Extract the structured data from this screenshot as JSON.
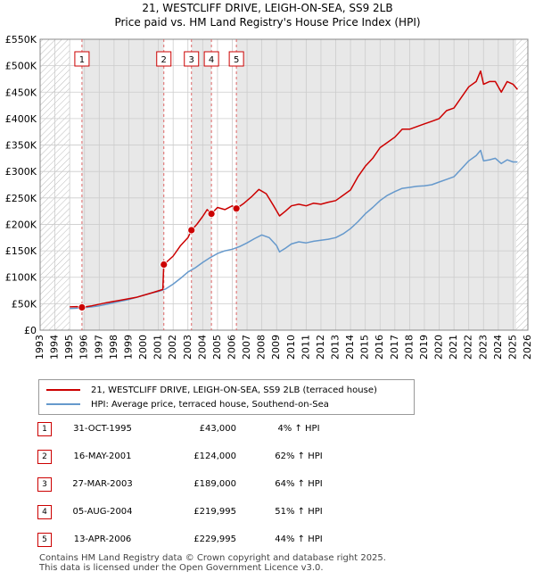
{
  "title_line1": "21, WESTCLIFF DRIVE, LEIGH-ON-SEA, SS9 2LB",
  "title_line2": "Price paid vs. HM Land Registry's House Price Index (HPI)",
  "colors": {
    "property": "#cc0000",
    "hpi": "#6699cc",
    "shade": "#e8e8e8",
    "grid": "#cccccc"
  },
  "chart_data": {
    "type": "line",
    "xlim": [
      1993,
      2026
    ],
    "ylim": [
      0,
      550000
    ],
    "y_ticks": [
      0,
      50000,
      100000,
      150000,
      200000,
      250000,
      300000,
      350000,
      400000,
      450000,
      500000,
      550000
    ],
    "y_tick_labels": [
      "£0",
      "£50K",
      "£100K",
      "£150K",
      "£200K",
      "£250K",
      "£300K",
      "£350K",
      "£400K",
      "£450K",
      "£500K",
      "£550K"
    ],
    "x_ticks": [
      1993,
      1994,
      1995,
      1996,
      1997,
      1998,
      1999,
      2000,
      2001,
      2002,
      2003,
      2004,
      2005,
      2006,
      2007,
      2008,
      2009,
      2010,
      2011,
      2012,
      2013,
      2014,
      2015,
      2016,
      2017,
      2018,
      2019,
      2020,
      2021,
      2022,
      2023,
      2024,
      2025,
      2026
    ],
    "hatched_ranges": [
      [
        1993,
        1995.0
      ],
      [
        2025.2,
        2026
      ]
    ],
    "series": [
      {
        "name": "21, WESTCLIFF DRIVE, LEIGH-ON-SEA, SS9 2LB (terraced house)",
        "color": "#cc0000",
        "x": [
          1995.0,
          1995.5,
          1995.83,
          1996.5,
          1997.5,
          1998.5,
          1999.5,
          2000.5,
          2001.3,
          2001.37,
          2002.0,
          2002.5,
          2003.0,
          2003.24,
          2003.6,
          2004.0,
          2004.3,
          2004.59,
          2005.0,
          2005.5,
          2006.0,
          2006.28,
          2006.8,
          2007.3,
          2007.8,
          2008.3,
          2008.8,
          2009.2,
          2009.6,
          2010.0,
          2010.5,
          2011.0,
          2011.5,
          2012.0,
          2012.5,
          2013.0,
          2013.5,
          2014.0,
          2014.5,
          2015.0,
          2015.5,
          2016.0,
          2016.5,
          2017.0,
          2017.5,
          2018.0,
          2018.5,
          2019.0,
          2019.5,
          2020.0,
          2020.5,
          2021.0,
          2021.5,
          2022.0,
          2022.5,
          2022.8,
          2023.0,
          2023.4,
          2023.8,
          2024.2,
          2024.6,
          2025.0,
          2025.3
        ],
        "y": [
          44000,
          44500,
          43000,
          46000,
          52000,
          57000,
          62000,
          70000,
          77000,
          124000,
          140000,
          160000,
          175000,
          189000,
          200000,
          215000,
          228000,
          219995,
          232000,
          228000,
          235000,
          229995,
          240000,
          252000,
          266000,
          258000,
          235000,
          216000,
          225000,
          235000,
          238000,
          235000,
          240000,
          238000,
          242000,
          245000,
          255000,
          265000,
          290000,
          310000,
          325000,
          345000,
          355000,
          365000,
          380000,
          380000,
          385000,
          390000,
          395000,
          400000,
          415000,
          420000,
          440000,
          460000,
          470000,
          490000,
          465000,
          470000,
          470000,
          450000,
          470000,
          465000,
          455000
        ]
      },
      {
        "name": "HPI: Average price, terraced house, Southend-on-Sea",
        "color": "#6699cc",
        "x": [
          1995.0,
          1995.5,
          1996.0,
          1996.5,
          1997.0,
          1997.5,
          1998.0,
          1998.5,
          1999.0,
          1999.5,
          2000.0,
          2000.5,
          2001.0,
          2001.5,
          2002.0,
          2002.5,
          2003.0,
          2003.5,
          2004.0,
          2004.5,
          2005.0,
          2005.5,
          2006.0,
          2006.5,
          2007.0,
          2007.5,
          2008.0,
          2008.5,
          2009.0,
          2009.2,
          2009.6,
          2010.0,
          2010.5,
          2011.0,
          2011.5,
          2012.0,
          2012.5,
          2013.0,
          2013.5,
          2014.0,
          2014.5,
          2015.0,
          2015.5,
          2016.0,
          2016.5,
          2017.0,
          2017.5,
          2018.0,
          2018.5,
          2019.0,
          2019.5,
          2020.0,
          2020.5,
          2021.0,
          2021.5,
          2022.0,
          2022.5,
          2022.8,
          2023.0,
          2023.4,
          2023.8,
          2024.2,
          2024.6,
          2025.0,
          2025.3
        ],
        "y": [
          41000,
          41500,
          42500,
          44000,
          46000,
          49000,
          52000,
          55000,
          58000,
          62000,
          66000,
          70000,
          73000,
          78000,
          87000,
          98000,
          110000,
          118000,
          128000,
          137000,
          145000,
          150000,
          153000,
          158000,
          165000,
          173000,
          180000,
          175000,
          160000,
          148000,
          155000,
          163000,
          167000,
          165000,
          168000,
          170000,
          172000,
          175000,
          182000,
          192000,
          205000,
          220000,
          232000,
          245000,
          255000,
          262000,
          268000,
          270000,
          272000,
          273000,
          275000,
          280000,
          285000,
          290000,
          305000,
          320000,
          330000,
          340000,
          320000,
          322000,
          325000,
          315000,
          322000,
          318000,
          318000
        ]
      }
    ],
    "sale_markers": [
      {
        "label": "1",
        "x": 1995.83,
        "y": 43000
      },
      {
        "label": "2",
        "x": 2001.37,
        "y": 124000
      },
      {
        "label": "3",
        "x": 2003.24,
        "y": 189000
      },
      {
        "label": "4",
        "x": 2004.59,
        "y": 219995
      },
      {
        "label": "5",
        "x": 2006.28,
        "y": 229995
      }
    ]
  },
  "legend": {
    "property_label": "21, WESTCLIFF DRIVE, LEIGH-ON-SEA, SS9 2LB (terraced house)",
    "hpi_label": "HPI: Average price, terraced house, Southend-on-Sea"
  },
  "sales": [
    {
      "num": "1",
      "date": "31-OCT-1995",
      "price": "£43,000",
      "hpi": "4% ↑ HPI"
    },
    {
      "num": "2",
      "date": "16-MAY-2001",
      "price": "£124,000",
      "hpi": "62% ↑ HPI"
    },
    {
      "num": "3",
      "date": "27-MAR-2003",
      "price": "£189,000",
      "hpi": "64% ↑ HPI"
    },
    {
      "num": "4",
      "date": "05-AUG-2004",
      "price": "£219,995",
      "hpi": "51% ↑ HPI"
    },
    {
      "num": "5",
      "date": "13-APR-2006",
      "price": "£229,995",
      "hpi": "44% ↑ HPI"
    }
  ],
  "footer_line1": "Contains HM Land Registry data © Crown copyright and database right 2025.",
  "footer_line2": "This data is licensed under the Open Government Licence v3.0."
}
